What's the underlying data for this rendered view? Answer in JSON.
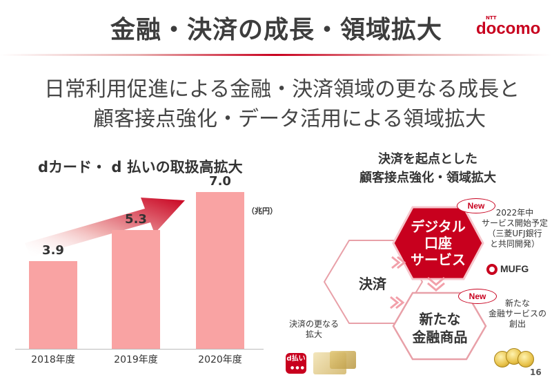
{
  "header": {
    "title": "金融・決済の成長・領域拡大",
    "logo_ntt": "NTT",
    "logo_name": "docomo"
  },
  "subtitle": {
    "line1": "日常利用促進による金融・決済領域の更なる成長と",
    "line2": "顧客接点強化・データ活用による領域拡大"
  },
  "left": {
    "title": "dカード・ d 払いの取扱高拡大",
    "unit": "（兆円）"
  },
  "chart_data": {
    "type": "bar",
    "title": "dカード・ d 払いの取扱高拡大",
    "categories": [
      "2018年度",
      "2019年度",
      "2020年度"
    ],
    "values": [
      3.9,
      5.3,
      7.0
    ],
    "value_labels": [
      "3.9",
      "5.3",
      "7.0"
    ],
    "unit": "（兆円）",
    "ylim": [
      0,
      8
    ],
    "bar_color": "#f9a3a3",
    "arrow_color": "#c8001e"
  },
  "right": {
    "title_line1": "決済を起点とした",
    "title_line2": "顧客接点強化・領域拡大",
    "hex_payment": "決済",
    "hex_digital_line1": "デジタル",
    "hex_digital_line2": "口座",
    "hex_digital_line3": "サービス",
    "hex_finance_line1": "新たな",
    "hex_finance_line2": "金融商品",
    "new_badge": "New",
    "note_2022_line1": "2022年中",
    "note_2022_line2": "サービス開始予定",
    "note_2022_line3": "（三菱UFJ銀行",
    "note_2022_line4": "と共同開発）",
    "mufg": "MUFG",
    "note_new_line1": "新たな",
    "note_new_line2": "金融サービスの",
    "note_new_line3": "創出",
    "note_growth_line1": "決済の更なる",
    "note_growth_line2": "拡大",
    "dpay_label": "d払い",
    "icons": [
      "d-payment-app-icon",
      "credit-card-icon",
      "gold-coins-icon",
      "mufg-logo-icon"
    ]
  },
  "page_number": "16",
  "colors": {
    "brand": "#c8001e",
    "bar": "#f9a3a3",
    "hex_fill": "#c8001e",
    "hex_outline": "#e8a0a8"
  }
}
